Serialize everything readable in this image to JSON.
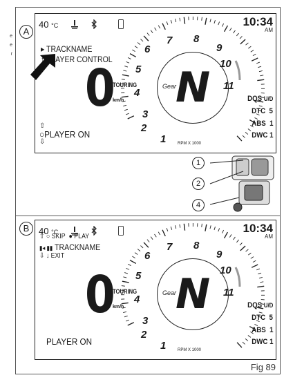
{
  "side_text": [
    "e",
    "e",
    "r"
  ],
  "figure_label": "Fig 89",
  "panel_a": {
    "badge": "A",
    "temperature": "40",
    "temp_unit": "°C",
    "clock": "10:34",
    "ampm": "AM",
    "menu": [
      {
        "icon": "▸",
        "text": "TRACKNAME"
      },
      {
        "icon": "↑",
        "text": "PLAYER CONTROL"
      }
    ],
    "speed": "0",
    "riding_mode": "TOURING",
    "speed_unit": "km/h",
    "player_status": "PLAYER ON",
    "gear_caption": "Gear",
    "gear": "N",
    "params": [
      {
        "label": "DQS",
        "value": "U/D"
      },
      {
        "label": "DTC",
        "value": "5"
      },
      {
        "label": "ABS",
        "value": "1"
      },
      {
        "label": "DWC",
        "value": "1"
      }
    ],
    "rpm_label": "RPM X 1000",
    "tach_numbers": [
      "1",
      "2",
      "3",
      "4",
      "5",
      "6",
      "7",
      "8",
      "9",
      "10",
      "11"
    ]
  },
  "panel_b": {
    "badge": "B",
    "temperature": "40",
    "temp_unit": "°C",
    "clock": "10:34",
    "ampm": "AM",
    "controls": [
      {
        "icons": "⇧ ○",
        "text": "SKIP",
        "icons2": "●",
        "text2": "PLAY"
      },
      {
        "icons": "▮◂ ▮▮",
        "text": "TRACKNAME"
      },
      {
        "icons": "⇩ ↓",
        "text": "EXIT"
      }
    ],
    "speed": "0",
    "riding_mode": "TOURING",
    "speed_unit": "km/h",
    "player_status": "PLAYER ON",
    "gear_caption": "Gear",
    "gear": "N",
    "params": [
      {
        "label": "DQS",
        "value": "U/D"
      },
      {
        "label": "DTC",
        "value": "5"
      },
      {
        "label": "ABS",
        "value": "1"
      },
      {
        "label": "DWC",
        "value": "1"
      }
    ],
    "rpm_label": "RPM X 1000",
    "tach_numbers": [
      "1",
      "2",
      "3",
      "4",
      "5",
      "6",
      "7",
      "8",
      "9",
      "10",
      "11"
    ]
  },
  "callouts": [
    "1",
    "2",
    "4"
  ]
}
